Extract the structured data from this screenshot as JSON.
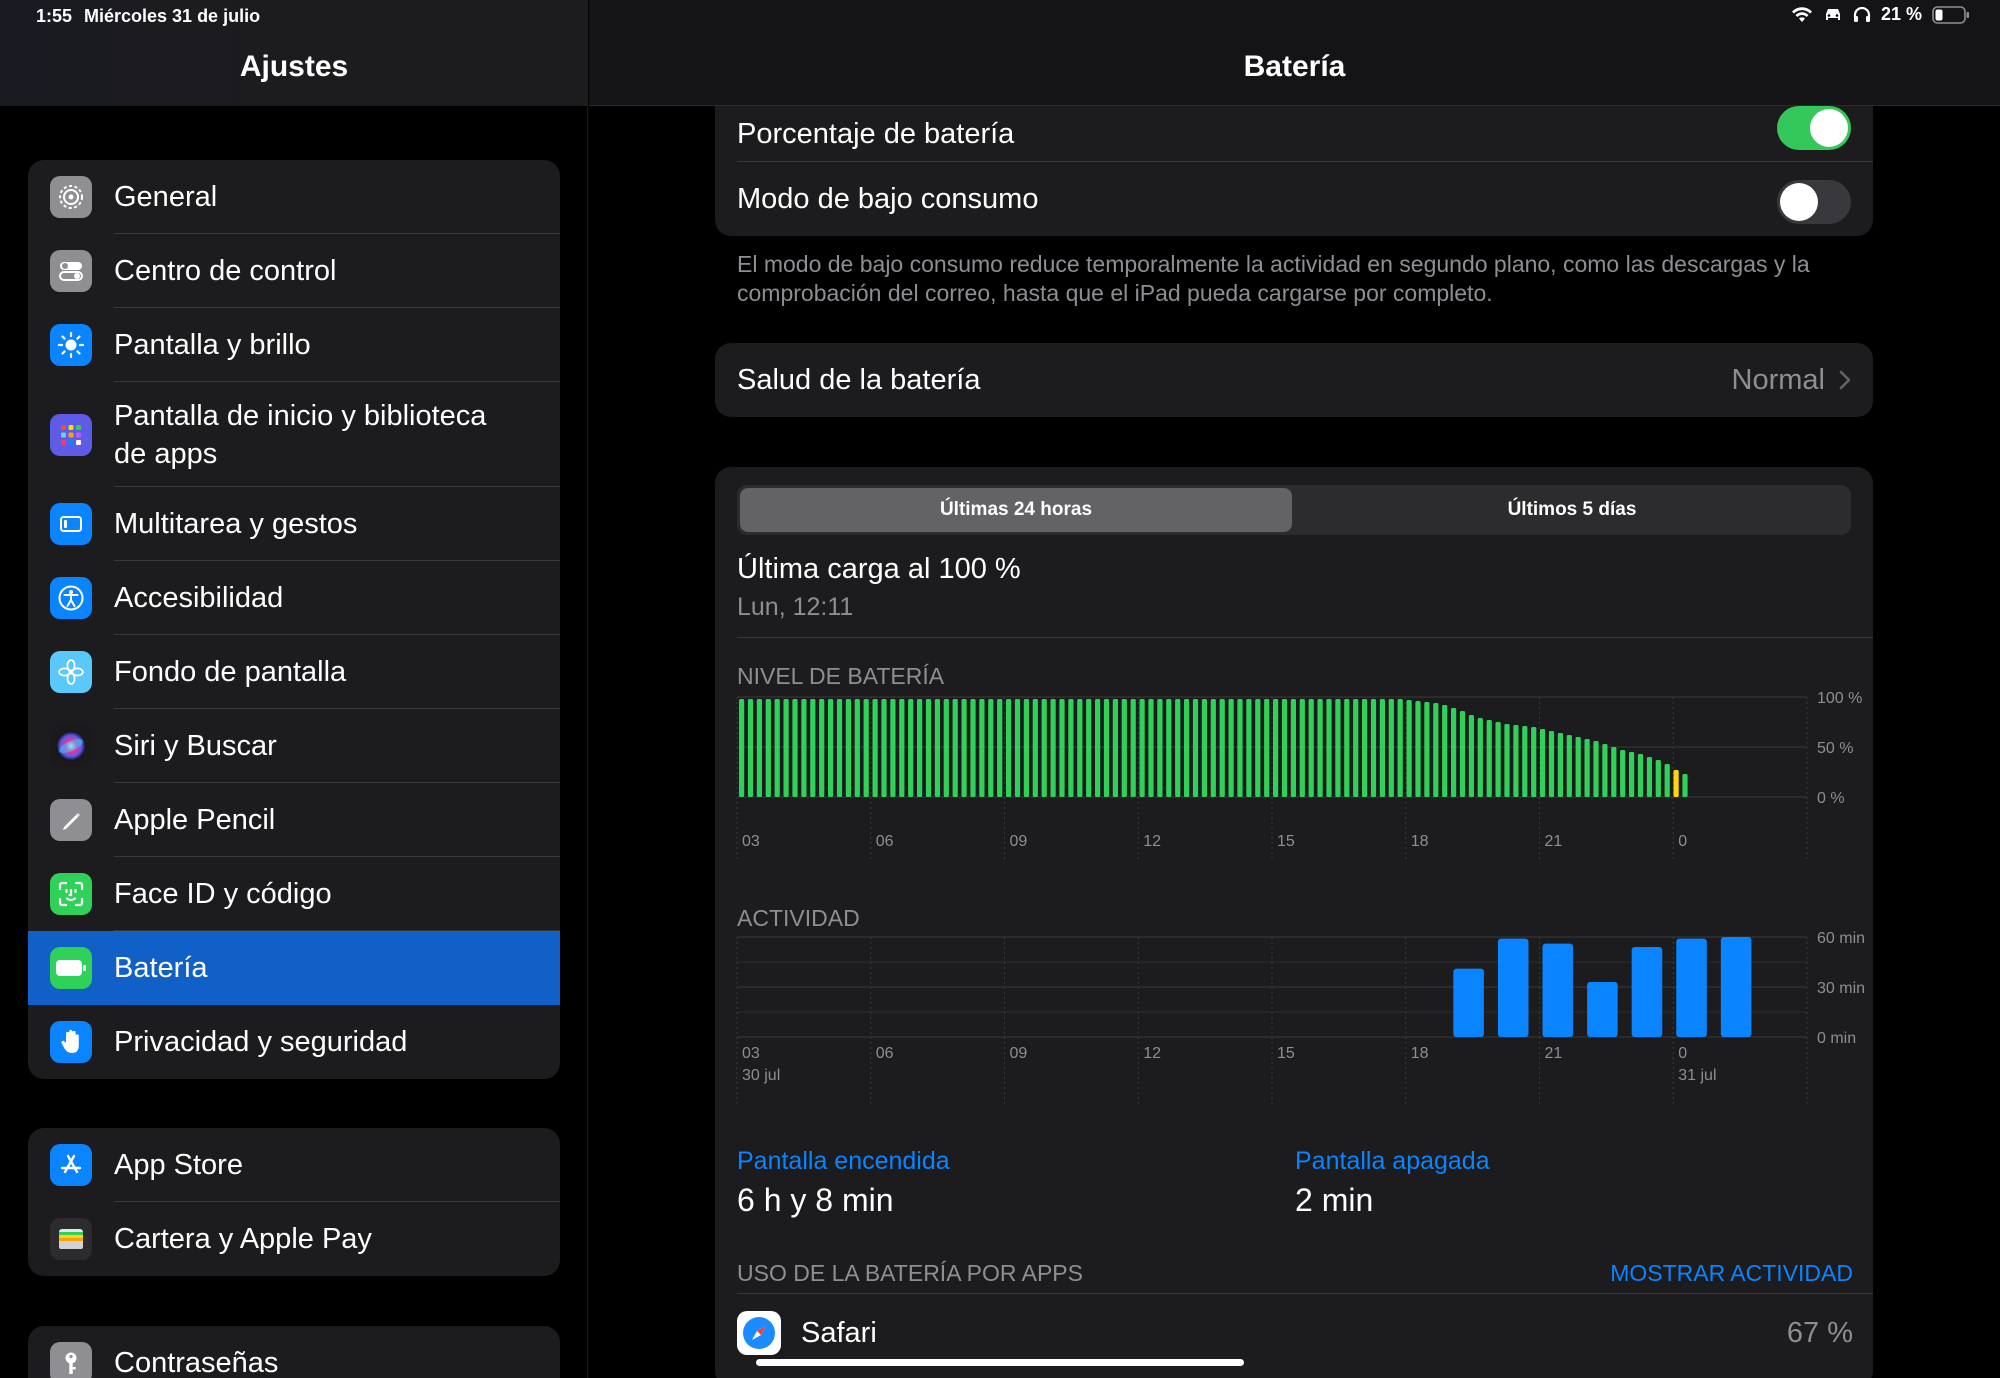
{
  "status": {
    "time": "1:55",
    "date": "Miércoles 31 de julio",
    "battery_pct": "21 %"
  },
  "sidebar": {
    "title": "Ajustes",
    "groups": [
      {
        "items": [
          {
            "label": "General",
            "icon": "gear-icon",
            "color": "#8e8e93"
          },
          {
            "label": "Centro de control",
            "icon": "switches-icon",
            "color": "#8e8e93"
          },
          {
            "label": "Pantalla y brillo",
            "icon": "sun-icon",
            "color": "#0a84ff"
          },
          {
            "label": "Pantalla de inicio y biblioteca de apps",
            "icon": "app-grid-icon",
            "color": "#5e5ce6"
          },
          {
            "label": "Multitarea y gestos",
            "icon": "multitask-icon",
            "color": "#0a84ff"
          },
          {
            "label": "Accesibilidad",
            "icon": "accessibility-icon",
            "color": "#0a84ff"
          },
          {
            "label": "Fondo de pantalla",
            "icon": "flower-icon",
            "color": "#5ac8fa"
          },
          {
            "label": "Siri y Buscar",
            "icon": "siri-icon",
            "color": "#222222"
          },
          {
            "label": "Apple Pencil",
            "icon": "pencil-icon",
            "color": "#8e8e93"
          },
          {
            "label": "Face ID y código",
            "icon": "face-id-icon",
            "color": "#30d158"
          },
          {
            "label": "Batería",
            "icon": "battery-icon",
            "color": "#30d158",
            "selected": true
          },
          {
            "label": "Privacidad y seguridad",
            "icon": "hand-icon",
            "color": "#0a84ff"
          }
        ]
      },
      {
        "items": [
          {
            "label": "App Store",
            "icon": "app-store-icon",
            "color": "#0a84ff"
          },
          {
            "label": "Cartera y Apple Pay",
            "icon": "wallet-icon",
            "color": "#2c2c2e"
          }
        ]
      },
      {
        "items": [
          {
            "label": "Contraseñas",
            "icon": "key-icon",
            "color": "#8e8e93"
          }
        ]
      }
    ]
  },
  "main": {
    "title": "Batería",
    "battery_percentage": {
      "label": "Porcentaje de batería",
      "on": true
    },
    "low_power": {
      "label": "Modo de bajo consumo",
      "on": false
    },
    "low_power_note": "El modo de bajo consumo reduce temporalmente la actividad en segundo plano, como las descargas y la comprobación del correo, hasta que el iPad pueda cargarse por completo.",
    "health": {
      "label": "Salud de la batería",
      "value": "Normal"
    },
    "segments": {
      "active": "Últimas 24 horas",
      "inactive": "Últimos 5 días"
    },
    "last_charge": {
      "title": "Última carga al 100 %",
      "subtitle": "Lun, 12:11"
    },
    "battery_chart_label": "NIVEL DE BATERÍA",
    "activity_chart_label": "ACTIVIDAD",
    "screen_on": {
      "label": "Pantalla encendida",
      "value": "6 h y 8 min"
    },
    "screen_off": {
      "label": "Pantalla apagada",
      "value": "2 min"
    },
    "apps_header": "USO DE LA BATERÍA POR APPS",
    "apps_link": "MOSTRAR ACTIVIDAD",
    "apps": [
      {
        "name": "Safari",
        "pct": "67 %"
      }
    ]
  },
  "chart_data": [
    {
      "type": "bar",
      "title": "NIVEL DE BATERÍA",
      "x_tick_labels": [
        "03",
        "06",
        "09",
        "12",
        "15",
        "18",
        "21",
        "0"
      ],
      "y_tick_labels": [
        "100 %",
        "50 %",
        "0 %"
      ],
      "ylim": [
        0,
        100
      ],
      "values": [
        98,
        98,
        98,
        98,
        98,
        98,
        98,
        98,
        98,
        98,
        98,
        98,
        98,
        98,
        98,
        98,
        98,
        98,
        98,
        98,
        98,
        98,
        98,
        98,
        98,
        98,
        98,
        98,
        98,
        98,
        98,
        98,
        98,
        98,
        98,
        98,
        98,
        98,
        98,
        98,
        98,
        98,
        98,
        98,
        98,
        98,
        98,
        98,
        98,
        98,
        98,
        98,
        98,
        98,
        98,
        98,
        98,
        98,
        98,
        98,
        98,
        98,
        98,
        98,
        98,
        98,
        98,
        98,
        98,
        98,
        98,
        98,
        98,
        98,
        98,
        97,
        96,
        95,
        94,
        92,
        89,
        86,
        82,
        79,
        77,
        75,
        73,
        72,
        71,
        70,
        68,
        66,
        64,
        62,
        60,
        58,
        56,
        53,
        50,
        47,
        45,
        43,
        40,
        37,
        33,
        27,
        23
      ],
      "low_threshold": 30,
      "colors": {
        "normal": "#30d158",
        "low": "#ffd60a"
      }
    },
    {
      "type": "bar",
      "title": "ACTIVIDAD",
      "x_tick_labels": [
        "03",
        "06",
        "09",
        "12",
        "15",
        "18",
        "21",
        "0"
      ],
      "date_labels": [
        "30 jul",
        "31 jul"
      ],
      "y_tick_labels": [
        "60 min",
        "30 min",
        "0 min"
      ],
      "ylim": [
        0,
        60
      ],
      "hours": [
        19,
        20,
        21,
        22,
        23,
        0,
        1
      ],
      "values": [
        41,
        59,
        56,
        33,
        54,
        59,
        60
      ],
      "color": "#0a84ff"
    }
  ]
}
